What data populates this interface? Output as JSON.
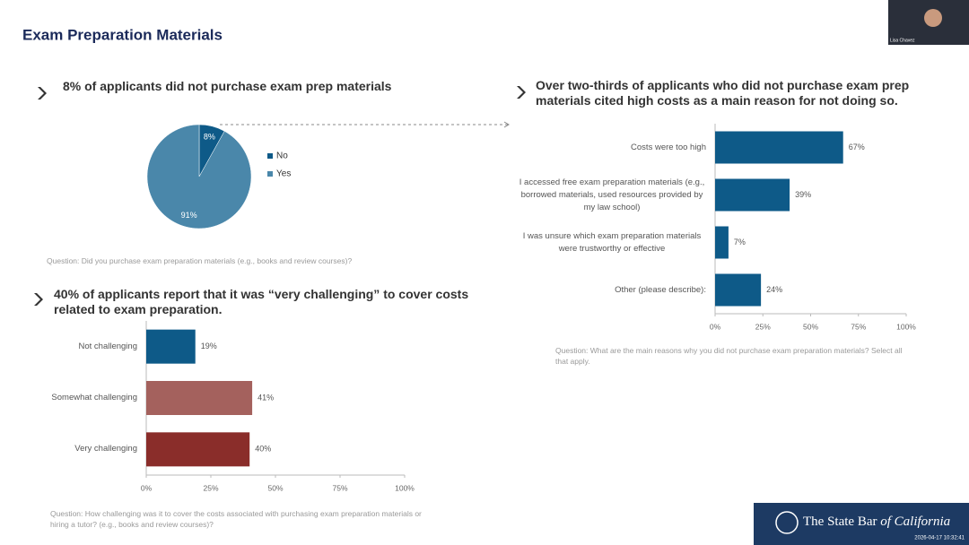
{
  "slide": {
    "title": "Exam Preparation Materials",
    "presenter": "Lisa Chavez",
    "logo": "The State Bar",
    "logo_italic": "of California",
    "timestamp": "2026-04-17 10:32:41"
  },
  "chart_data": [
    {
      "type": "pie",
      "headline": "8% of applicants did not purchase exam prep materials",
      "question": "Question: Did you purchase exam preparation materials (e.g., books and review courses)?",
      "categories": [
        "No",
        "Yes"
      ],
      "values": [
        8,
        91
      ],
      "value_labels": [
        "8%",
        "91%"
      ],
      "colors": [
        "#0e5a88",
        "#4a87aa"
      ],
      "legend": "right"
    },
    {
      "type": "barh",
      "headline": "40% of applicants report that it was “very challenging” to cover costs related to exam preparation.",
      "question": "Question: How challenging was it to cover the costs associated with purchasing exam preparation materials or hiring a tutor? (e.g., books and review courses)?",
      "categories": [
        "Not challenging",
        "Somewhat challenging",
        "Very challenging"
      ],
      "values": [
        19,
        41,
        40
      ],
      "value_labels": [
        "19%",
        "41%",
        "40%"
      ],
      "colors": [
        "#0e5a88",
        "#a4615d",
        "#8a2d2a"
      ],
      "xlim": [
        0,
        100
      ],
      "xticks": [
        {
          "value": 0,
          "label": "0%"
        },
        {
          "value": 25,
          "label": "25%"
        },
        {
          "value": 50,
          "label": "50%"
        },
        {
          "value": 75,
          "label": "75%"
        },
        {
          "value": 100,
          "label": "100%"
        }
      ]
    },
    {
      "type": "barh",
      "headline": "Over two-thirds of applicants who did not purchase exam prep materials cited high costs as a main reason for not doing so.",
      "question": "Question: What are the main reasons why you did not purchase exam preparation materials? Select all that apply.",
      "categories": [
        "Costs were too high",
        "I accessed free exam preparation materials (e.g., borrowed materials, used resources provided by my law school)",
        "I was unsure which exam preparation materials were trustworthy or effective",
        "Other (please describe):"
      ],
      "values": [
        67,
        39,
        7,
        24
      ],
      "value_labels": [
        "67%",
        "39%",
        "7%",
        "24%"
      ],
      "color": "#0e5a88",
      "xlim": [
        0,
        100
      ],
      "xticks": [
        {
          "value": 0,
          "label": "0%"
        },
        {
          "value": 25,
          "label": "25%"
        },
        {
          "value": 50,
          "label": "50%"
        },
        {
          "value": 75,
          "label": "75%"
        },
        {
          "value": 100,
          "label": "100%"
        }
      ]
    }
  ]
}
